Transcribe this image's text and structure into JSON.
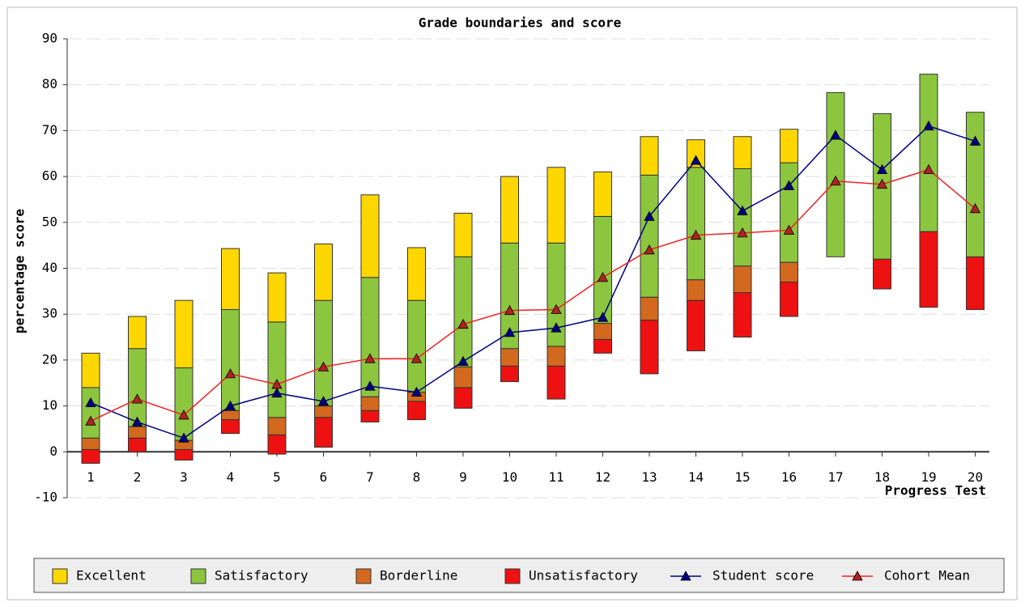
{
  "chart_data": {
    "type": "floating_stacked_bar_line",
    "title": "Grade boundaries and score",
    "y_label": "percentage score",
    "x_label": "Progress Test",
    "categories": [
      "1",
      "2",
      "3",
      "4",
      "5",
      "6",
      "7",
      "8",
      "9",
      "10",
      "11",
      "12",
      "13",
      "14",
      "15",
      "16",
      "17",
      "18",
      "19",
      "20"
    ],
    "base": [
      -2.5,
      0,
      -1.8,
      4,
      -0.5,
      1,
      6.5,
      7,
      9.5,
      15.3,
      11.5,
      21.5,
      17,
      22,
      25,
      29.5,
      42.5,
      35.5,
      31.5,
      31
    ],
    "series": [
      {
        "name": "Excellent",
        "kind": "bar",
        "color": "#ffd700",
        "values": [
          7.5,
          7,
          14.7,
          13.3,
          10.7,
          12.3,
          18,
          11.5,
          9.5,
          14.5,
          16.5,
          9.7,
          8.4,
          6,
          7,
          7.3,
          0,
          0,
          0,
          0
        ]
      },
      {
        "name": "Satisfactory",
        "kind": "bar",
        "color": "#8cc63f",
        "values": [
          11,
          17,
          15.8,
          22,
          20.8,
          23,
          26,
          20,
          24,
          23,
          22.5,
          23.3,
          26.6,
          24.5,
          21.2,
          21.7,
          35.8,
          31.7,
          34.3,
          31.5
        ]
      },
      {
        "name": "Borderline",
        "kind": "bar",
        "color": "#d2691e",
        "values": [
          2.5,
          2.5,
          2,
          2,
          3.8,
          2.5,
          3,
          2,
          4.5,
          3.8,
          4.3,
          3.5,
          5,
          4.5,
          5.8,
          4.3,
          0,
          0,
          0,
          0
        ]
      },
      {
        "name": "Unsatisfactory",
        "kind": "bar",
        "color": "#ee1111",
        "values": [
          3,
          3,
          2.3,
          3,
          4.2,
          6.5,
          2.5,
          4,
          4.5,
          3.4,
          7.2,
          3,
          11.7,
          11,
          9.7,
          7.5,
          0,
          6.5,
          16.5,
          11.5
        ]
      },
      {
        "name": "Student score",
        "kind": "line",
        "color": "#000080",
        "values": [
          10.7,
          6.5,
          3,
          10,
          12.8,
          11,
          14.3,
          13,
          19.7,
          26,
          27,
          29.3,
          51.3,
          63.5,
          52.5,
          58,
          69,
          61.5,
          71,
          67.7
        ]
      },
      {
        "name": "Cohort Mean",
        "kind": "line",
        "color": "#ee2222",
        "values": [
          6.7,
          11.5,
          8,
          17,
          14.7,
          18.5,
          20.3,
          20.3,
          27.8,
          30.8,
          31,
          38,
          44,
          47.2,
          47.7,
          48.3,
          59,
          58.3,
          61.5,
          53
        ]
      }
    ],
    "ylim": [
      -10,
      90
    ],
    "yticks": [
      -10,
      0,
      10,
      20,
      30,
      40,
      50,
      60,
      70,
      80,
      90
    ],
    "grid": true,
    "legend": "bottom"
  }
}
